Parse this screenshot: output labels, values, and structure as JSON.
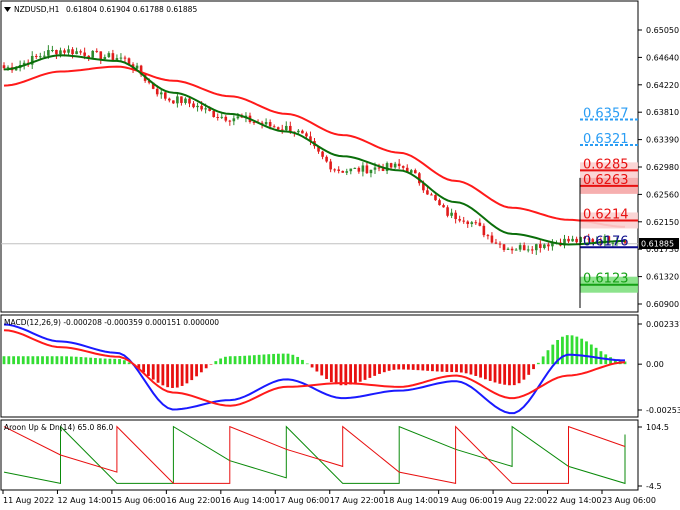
{
  "window": {
    "symbol_title": "NZDUSD,H1",
    "ohlc_text": "0.61804 0.61904 0.61788 0.61885",
    "menu_icon": "triangle-down-icon"
  },
  "colors": {
    "bull_candle": "#2e8b2e",
    "bear_candle": "#e11b1b",
    "ma_fast": "#0a6e0a",
    "ma_slow": "#ff1a1a",
    "macd_line": "#1a1aff",
    "signal_line": "#ff1a1a",
    "hist_pos": "#33dd33",
    "hist_neg": "#e81010",
    "aroon_up": "#e81010",
    "aroon_down": "#0a8a0a",
    "level_blue": "#2a9df4",
    "level_red": "#e81010",
    "level_green": "#14a014",
    "level_navy": "#0a0a8c"
  },
  "price_axis": {
    "ticks": [
      "0.65050",
      "0.64640",
      "0.64220",
      "0.63810",
      "0.63390",
      "0.62980",
      "0.62560",
      "0.62150",
      "0.61730",
      "0.61320",
      "0.60900"
    ],
    "current_price": "0.61885"
  },
  "levels": [
    {
      "label": "0.6357",
      "value": 0.6357,
      "kind": "resistance-blue"
    },
    {
      "label": "0.6321",
      "value": 0.6321,
      "kind": "resistance-blue"
    },
    {
      "label": "0.6285",
      "value": 0.6285,
      "kind": "resistance-red"
    },
    {
      "label": "0.6263",
      "value": 0.6263,
      "kind": "zone-red"
    },
    {
      "label": "0.6214",
      "value": 0.6214,
      "kind": "resistance-red"
    },
    {
      "label": "0.6176",
      "value": 0.6176,
      "kind": "pivot-navy"
    },
    {
      "label": "0.6123",
      "value": 0.6123,
      "kind": "support-green"
    }
  ],
  "macd": {
    "label": "MACD(12,26,9) -0.000208 -0.000359 0.000151 0.000000",
    "ticks": [
      "0.002337",
      "0.00",
      "-0.00253"
    ]
  },
  "aroon": {
    "label": "Aroon Up & Dn(14) 65.0 86.0",
    "ticks": [
      "104.5",
      "-4.5"
    ]
  },
  "time_axis": {
    "ticks": [
      "11 Aug 2022",
      "12 Aug 14:00",
      "15 Aug 06:00",
      "16 Aug 22:00",
      "16 Aug 14:00",
      "17 Aug 06:00",
      "17 Aug 22:00",
      "18 Aug 14:00",
      "19 Aug 06:00",
      "19 Aug 22:00",
      "22 Aug 14:00",
      "23 Aug 06:00"
    ]
  },
  "chart_data": {
    "type": "line",
    "title": "NZDUSD,H1",
    "x": [
      "11 Aug 2022",
      "12 Aug 14:00",
      "15 Aug 06:00",
      "16 Aug 22:00",
      "16 Aug 14:00",
      "17 Aug 06:00",
      "17 Aug 22:00",
      "18 Aug 14:00",
      "19 Aug 06:00",
      "19 Aug 22:00",
      "22 Aug 14:00",
      "23 Aug 06:00"
    ],
    "ylim": [
      0.609,
      0.6515
    ],
    "series": [
      {
        "values": [
          0.643,
          0.6455,
          0.6445,
          0.6385,
          0.636,
          0.6345,
          0.6285,
          0.629,
          0.622,
          0.6175,
          0.6185,
          0.6188
        ]
      },
      {
        "values": [
          0.6428,
          0.6448,
          0.644,
          0.6395,
          0.6365,
          0.634,
          0.6305,
          0.6285,
          0.624,
          0.6195,
          0.618,
          0.6185
        ]
      },
      {
        "values": [
          0.6405,
          0.6425,
          0.6432,
          0.6412,
          0.639,
          0.6365,
          0.6335,
          0.631,
          0.627,
          0.6232,
          0.6215,
          0.6205
        ]
      }
    ],
    "macd": {
      "ylim": [
        -0.00253,
        0.002337
      ],
      "series": [
        {
          "values": [
            0.0021,
            0.0012,
            0.0006,
            -0.0024,
            -0.0019,
            -0.0008,
            -0.0018,
            -0.0014,
            -0.0009,
            -0.0026,
            0.0005,
            0.0002
          ]
        },
        {
          "values": [
            0.0018,
            0.0009,
            0.0004,
            -0.0015,
            -0.0022,
            -0.0012,
            -0.001,
            -0.0012,
            -0.0006,
            -0.0018,
            -0.0006,
            0.0001
          ]
        }
      ]
    },
    "aroon": {
      "ylim": [
        -4.5,
        104.5
      ],
      "series": [
        {
          "values": [
            100,
            50,
            100,
            0,
            100,
            60,
            100,
            20,
            100,
            0,
            100,
            65
          ]
        },
        {
          "values": [
            20,
            100,
            0,
            100,
            40,
            100,
            0,
            100,
            60,
            100,
            30,
            86
          ]
        }
      ]
    }
  }
}
